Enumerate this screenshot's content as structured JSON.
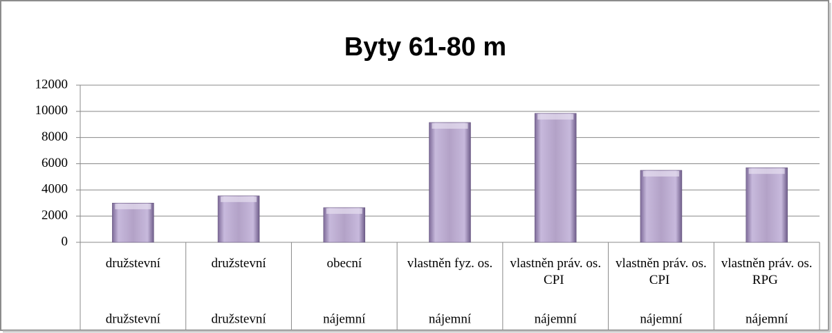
{
  "chart_data": {
    "type": "bar",
    "title": "Byty 61-80 m",
    "categories": [
      "družstevní",
      "družstevní",
      "obecní",
      "vlastněn fyz. os.",
      "vlastněn práv. os. CPI",
      "vlastněn práv. os. CPI",
      "vlastněn práv. os. RPG"
    ],
    "category_groups": [
      "družstevní",
      "družstevní",
      "nájemní",
      "nájemní",
      "nájemní",
      "nájemní",
      "nájemní"
    ],
    "values": [
      3000,
      3550,
      2650,
      9150,
      9850,
      5500,
      5700
    ],
    "color": "#b3a2c7",
    "ylim": [
      0,
      12000
    ],
    "yticks": [
      0,
      2000,
      4000,
      6000,
      8000,
      10000,
      12000
    ],
    "grid": true
  }
}
